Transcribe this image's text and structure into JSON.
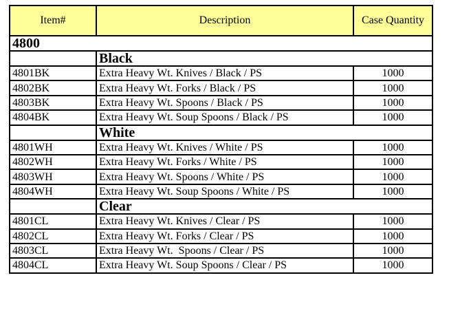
{
  "page": {
    "background_color": "#ffffff"
  },
  "table": {
    "header": {
      "item": "Item#",
      "description": "Description",
      "case_quantity": "Case Quantity",
      "background_color": "#ffff99",
      "border_color": "#000000"
    },
    "category": "4800",
    "sections": [
      {
        "name": "Black",
        "rows": [
          {
            "item": "4801BK",
            "description": "Extra Heavy Wt. Knives / Black / PS",
            "qty": "1000"
          },
          {
            "item": "4802BK",
            "description": "Extra Heavy Wt. Forks / Black / PS",
            "qty": "1000"
          },
          {
            "item": "4803BK",
            "description": "Extra Heavy Wt. Spoons / Black / PS",
            "qty": "1000"
          },
          {
            "item": "4804BK",
            "description": "Extra Heavy Wt. Soup Spoons / Black / PS",
            "qty": "1000"
          }
        ]
      },
      {
        "name": "White",
        "rows": [
          {
            "item": "4801WH",
            "description": "Extra Heavy Wt. Knives / White / PS",
            "qty": "1000"
          },
          {
            "item": "4802WH",
            "description": "Extra Heavy Wt. Forks / White / PS",
            "qty": "1000"
          },
          {
            "item": "4803WH",
            "description": "Extra Heavy Wt. Spoons / White / PS",
            "qty": "1000"
          },
          {
            "item": "4804WH",
            "description": "Extra Heavy Wt. Soup Spoons / White / PS",
            "qty": "1000"
          }
        ]
      },
      {
        "name": "Clear",
        "rows": [
          {
            "item": "4801CL",
            "description": "Extra Heavy Wt. Knives / Clear / PS",
            "qty": "1000"
          },
          {
            "item": "4802CL",
            "description": "Extra Heavy Wt. Forks / Clear / PS",
            "qty": "1000"
          },
          {
            "item": "4803CL",
            "description": "Extra Heavy Wt.  Spoons / Clear / PS",
            "qty": "1000"
          },
          {
            "item": "4804CL",
            "description": "Extra Heavy Wt. Soup Spoons / Clear / PS",
            "qty": "1000"
          }
        ]
      }
    ]
  }
}
